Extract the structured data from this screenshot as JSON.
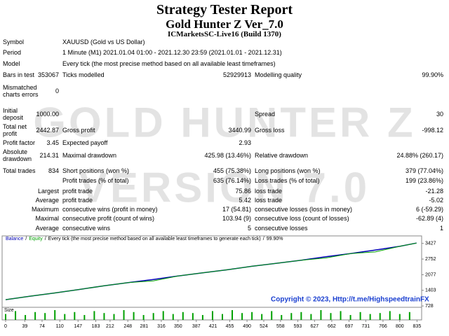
{
  "header": {
    "title": "Strategy Tester Report",
    "subtitle": "Gold Hunter Z Ver_7.0",
    "server": "ICMarketsSC-Live16 (Build 1370)"
  },
  "watermark": {
    "line1": "GOLD HUNTER Z",
    "line2": "VERSION 7.0"
  },
  "rows": [
    {
      "label": "Symbol",
      "text": "XAUUSD (Gold vs US Dollar)"
    },
    {
      "label": "Period",
      "text": "1 Minute (M1) 2021.01.04 01:00 - 2021.12.30 23:59 (2021.01.01 - 2021.12.31)"
    },
    {
      "label": "Model",
      "text": "Every tick (the most precise method based on all available least timeframes)"
    },
    {
      "label": "Bars in test",
      "value": "353067",
      "label2": "Ticks modelled",
      "value2": "52929913",
      "label3": "Modelling quality",
      "value3": "99.90%"
    },
    {
      "label": "Mismatched charts errors",
      "value": "0"
    },
    {
      "label": "Initial deposit",
      "value": "1000.00",
      "label3": "Spread",
      "value3": "30"
    },
    {
      "label": "Total net profit",
      "value": "2442.87",
      "label2": "Gross profit",
      "value2": "3440.99",
      "label3": "Gross loss",
      "value3": "-998.12"
    },
    {
      "label": "Profit factor",
      "value": "3.45",
      "label2": "Expected payoff",
      "value2": "2.93"
    },
    {
      "label": "Absolute drawdown",
      "value": "214.31",
      "label2": "Maximal drawdown",
      "value2": "425.98 (13.46%)",
      "label3": "Relative drawdown",
      "value3": "24.88% (260.17)"
    },
    {
      "label": "Total trades",
      "value": "834",
      "label2": "Short positions (won %)",
      "value2": "455 (75.38%)",
      "label3": "Long positions (won %)",
      "value3": "379 (77.04%)"
    },
    {
      "label2": "Profit trades (% of total)",
      "value2": "635 (76.14%)",
      "label3": "Loss trades (% of total)",
      "value3": "199 (23.86%)"
    },
    {
      "group": "Largest",
      "label2": "profit trade",
      "value2": "75.86",
      "label3": "loss trade",
      "value3": "-21.28"
    },
    {
      "group": "Average",
      "label2": "profit trade",
      "value2": "5.42",
      "label3": "loss trade",
      "value3": "-5.02"
    },
    {
      "group": "Maximum",
      "label2": "consecutive wins (profit in money)",
      "value2": "17 (54.81)",
      "label3": "consecutive losses (loss in money)",
      "value3": "6 (-59.29)"
    },
    {
      "group": "Maximal",
      "label2": "consecutive profit (count of wins)",
      "value2": "103.94 (9)",
      "label3": "consecutive loss (count of losses)",
      "value3": "-62.89 (4)"
    },
    {
      "group": "Average",
      "label2": "consecutive wins",
      "value2": "5",
      "label3": "consecutive losses",
      "value3": "1"
    }
  ],
  "chart_data": {
    "type": "line",
    "separator": "/",
    "note": "Every tick (the most precise method based on all available least timeframes to generate each tick)",
    "quality": "99.90%",
    "copyright": "Copyright © 2023, Http://t.me/HighspeedtrainFX",
    "x": [
      0,
      50,
      100,
      150,
      200,
      250,
      300,
      350,
      400,
      450,
      500,
      550,
      600,
      650,
      700,
      750,
      800,
      834
    ],
    "series": [
      {
        "name": "Balance",
        "color": "#0000b4",
        "values": [
          1000,
          1150,
          1290,
          1440,
          1600,
          1740,
          1870,
          2020,
          2160,
          2290,
          2440,
          2570,
          2700,
          2850,
          2990,
          3140,
          3300,
          3443
        ]
      },
      {
        "name": "Equity",
        "color": "#00a000",
        "values": [
          1000,
          1150,
          1290,
          1440,
          1600,
          1740,
          1810,
          2020,
          2160,
          2290,
          2440,
          2570,
          2700,
          2800,
          2990,
          3060,
          3300,
          3443
        ]
      }
    ],
    "xlim": [
      0,
      843
    ],
    "xticks": [
      0,
      39,
      74,
      110,
      147,
      183,
      212,
      248,
      281,
      316,
      350,
      387,
      421,
      455,
      490,
      524,
      558,
      593,
      627,
      662,
      697,
      731,
      766,
      800,
      835
    ],
    "ylim": [
      640,
      3600
    ],
    "yticks": [
      728,
      1403,
      2077,
      2752,
      3427
    ],
    "size": {
      "name": "Size",
      "color": "#00a000",
      "x": [
        0,
        20,
        40,
        60,
        80,
        100,
        120,
        140,
        160,
        180,
        200,
        220,
        240,
        260,
        280,
        300,
        320,
        340,
        360,
        380,
        400,
        420,
        440,
        460,
        480,
        500,
        520,
        540,
        560,
        580,
        600,
        620,
        640,
        660,
        680,
        700,
        720,
        740,
        760,
        780,
        800,
        820
      ],
      "values": [
        0.6,
        0.9,
        0.5,
        0.8,
        0.7,
        1,
        0.6,
        0.8,
        0.5,
        0.9,
        0.7,
        0.6,
        1,
        0.8,
        0.5,
        0.7,
        0.9,
        0.6,
        0.8,
        0.7,
        0.5,
        0.9,
        0.6,
        1,
        0.7,
        0.8,
        0.6,
        0.9,
        0.5,
        0.7,
        0.8,
        0.6,
        1,
        0.7,
        0.9,
        0.5,
        0.8,
        0.6,
        0.7,
        0.9,
        0.6,
        0.8
      ],
      "ylim": [
        0,
        1
      ]
    }
  }
}
